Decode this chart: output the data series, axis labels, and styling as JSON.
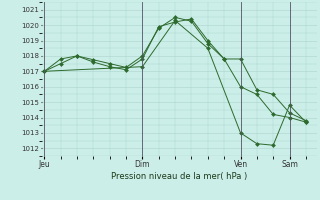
{
  "background_color": "#cceee8",
  "grid_color": "#aad4cc",
  "line_color": "#2d6a2d",
  "xlabel": "Pression niveau de la mer( hPa )",
  "ylim": [
    1011.5,
    1021.5
  ],
  "yticks": [
    1012,
    1013,
    1014,
    1015,
    1016,
    1017,
    1018,
    1019,
    1020,
    1021
  ],
  "day_labels": [
    "Jeu",
    "Dim",
    "Ven",
    "Sam"
  ],
  "day_positions": [
    0,
    36,
    72,
    90
  ],
  "xlim": [
    -1,
    100
  ],
  "series1_x": [
    0,
    6,
    12,
    18,
    24,
    30,
    36,
    42,
    48,
    54,
    60,
    66,
    72,
    78,
    84,
    90,
    96
  ],
  "series1_y": [
    1017.0,
    1017.5,
    1018.0,
    1017.75,
    1017.5,
    1017.25,
    1018.0,
    1019.8,
    1020.5,
    1020.25,
    1018.8,
    1017.8,
    1017.8,
    1015.8,
    1015.5,
    1014.3,
    1013.8
  ],
  "series2_x": [
    0,
    6,
    12,
    18,
    24,
    30,
    36,
    42,
    48,
    54,
    60,
    66,
    72,
    78,
    84,
    90,
    96
  ],
  "series2_y": [
    1017.0,
    1017.8,
    1018.0,
    1017.6,
    1017.3,
    1017.1,
    1017.8,
    1019.9,
    1020.2,
    1020.4,
    1019.0,
    1017.8,
    1016.0,
    1015.5,
    1014.2,
    1014.0,
    1013.7
  ],
  "series3_x": [
    0,
    36,
    48,
    60,
    72,
    78,
    84,
    90,
    96
  ],
  "series3_y": [
    1017.0,
    1017.3,
    1020.3,
    1018.5,
    1013.0,
    1012.3,
    1012.2,
    1014.8,
    1013.7
  ]
}
